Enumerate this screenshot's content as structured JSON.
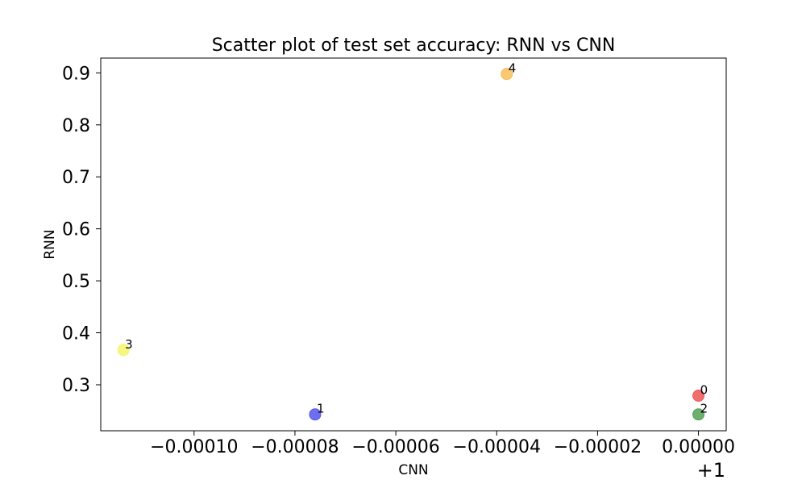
{
  "chart_data": {
    "type": "scatter",
    "title": "Scatter plot of test set accuracy: RNN vs CNN",
    "xlabel": "CNN",
    "ylabel": "RNN",
    "x_offset_label": "+1",
    "xlim": [
      -0.0001185,
      5.5e-06
    ],
    "ylim": [
      0.2115,
      0.9285
    ],
    "x_ticks": [
      {
        "value": -0.0001,
        "label": "−0.00010"
      },
      {
        "value": -8e-05,
        "label": "−0.00008"
      },
      {
        "value": -6e-05,
        "label": "−0.00006"
      },
      {
        "value": -4e-05,
        "label": "−0.00004"
      },
      {
        "value": -2e-05,
        "label": "−0.00002"
      },
      {
        "value": 0.0,
        "label": "0.00000"
      }
    ],
    "y_ticks": [
      {
        "value": 0.3,
        "label": "0.3"
      },
      {
        "value": 0.4,
        "label": "0.4"
      },
      {
        "value": 0.5,
        "label": "0.5"
      },
      {
        "value": 0.6,
        "label": "0.6"
      },
      {
        "value": 0.7,
        "label": "0.7"
      },
      {
        "value": 0.8,
        "label": "0.8"
      },
      {
        "value": 0.9,
        "label": "0.9"
      }
    ],
    "grid": false,
    "points": [
      {
        "label": "0",
        "x": 1.0,
        "y": 0.279,
        "color": "#ee5555"
      },
      {
        "label": "1",
        "x": 0.999924,
        "y": 0.243,
        "color": "#5555ee"
      },
      {
        "label": "2",
        "x": 1.0,
        "y": 0.243,
        "color": "#55a055"
      },
      {
        "label": "3",
        "x": 0.999886,
        "y": 0.367,
        "color": "#f4f46a"
      },
      {
        "label": "4",
        "x": 0.999962,
        "y": 0.898,
        "color": "#f8be5a"
      }
    ]
  }
}
